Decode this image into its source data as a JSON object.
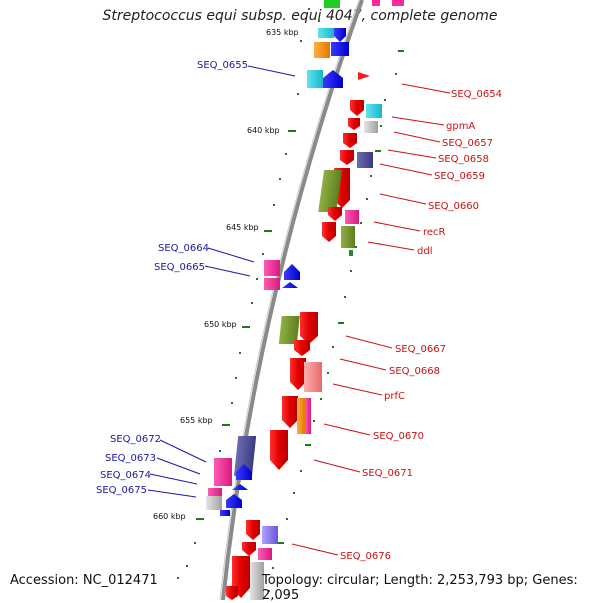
{
  "title": "Streptococcus equi subsp. equi 4047, complete genome",
  "footer": {
    "accession": "Accession: NC_012471",
    "topology": "Topology: circular; Length: 2,253,793 bp; Genes: 2,095"
  },
  "kbp_labels": [
    "635 kbp",
    "640 kbp",
    "645 kbp",
    "650 kbp",
    "655 kbp",
    "660 kbp"
  ],
  "gene_labels_left": [
    "SEQ_0655",
    "SEQ_0664",
    "SEQ_0665",
    "SEQ_0672",
    "SEQ_0673",
    "SEQ_0674",
    "SEQ_0675"
  ],
  "gene_labels_right": [
    "SEQ_0654",
    "gpmA",
    "SEQ_0657",
    "SEQ_0658",
    "SEQ_0659",
    "SEQ_0660",
    "recR",
    "ddl",
    "SEQ_0667",
    "SEQ_0668",
    "prfC",
    "SEQ_0670",
    "SEQ_0671",
    "SEQ_0676"
  ],
  "colors": {
    "backbone": "#8a8a8a",
    "tick_green": "#1e7a1e",
    "left_label": "#1a1aa6",
    "right_label": "#cc1111"
  }
}
